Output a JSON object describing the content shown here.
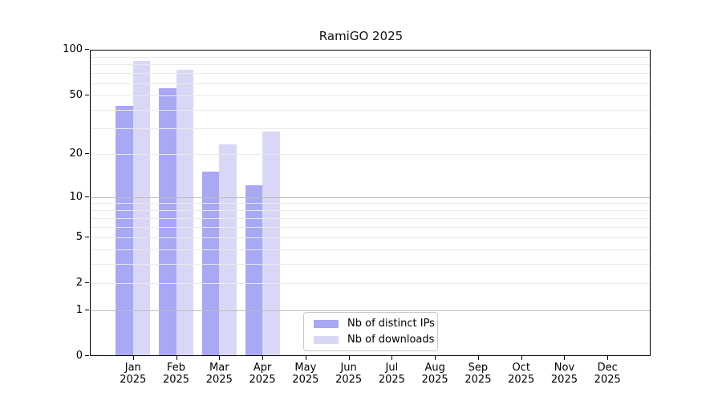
{
  "title": "RamiGO 2025",
  "legend": {
    "items": [
      {
        "label": "Nb of distinct IPs",
        "color": "#a8a8f4"
      },
      {
        "label": "Nb of downloads",
        "color": "#d8d8f6"
      }
    ]
  },
  "colors": {
    "bar_distinct_ips": "#a8a8f4",
    "bar_downloads": "#d8d8f6",
    "grid_minor": "#eaeaea",
    "grid_major": "#bdbdbd",
    "axis": "#000000"
  },
  "chart_data": {
    "type": "bar",
    "title": "RamiGO 2025",
    "categories": [
      "Jan",
      "Feb",
      "Mar",
      "Apr",
      "May",
      "Jun",
      "Jul",
      "Aug",
      "Sep",
      "Oct",
      "Nov",
      "Dec"
    ],
    "year_label": "2025",
    "series": [
      {
        "name": "Nb of distinct IPs",
        "color": "#a8a8f4",
        "values": [
          42,
          55,
          15,
          12,
          null,
          null,
          null,
          null,
          null,
          null,
          null,
          null
        ]
      },
      {
        "name": "Nb of downloads",
        "color": "#d8d8f6",
        "values": [
          83,
          73,
          23,
          28,
          null,
          null,
          null,
          null,
          null,
          null,
          null,
          null
        ]
      }
    ],
    "y_scale": "log1p",
    "ylim": [
      0,
      100
    ],
    "y_ticks": [
      0,
      1,
      2,
      5,
      10,
      20,
      50,
      100
    ],
    "minor_gridlines": [
      2,
      3,
      4,
      5,
      6,
      7,
      8,
      9,
      20,
      30,
      40,
      50,
      60,
      70,
      80,
      90
    ],
    "major_gridlines": [
      1,
      10
    ],
    "grid": true,
    "legend_position": "lower center",
    "xlabel": "",
    "ylabel": ""
  }
}
